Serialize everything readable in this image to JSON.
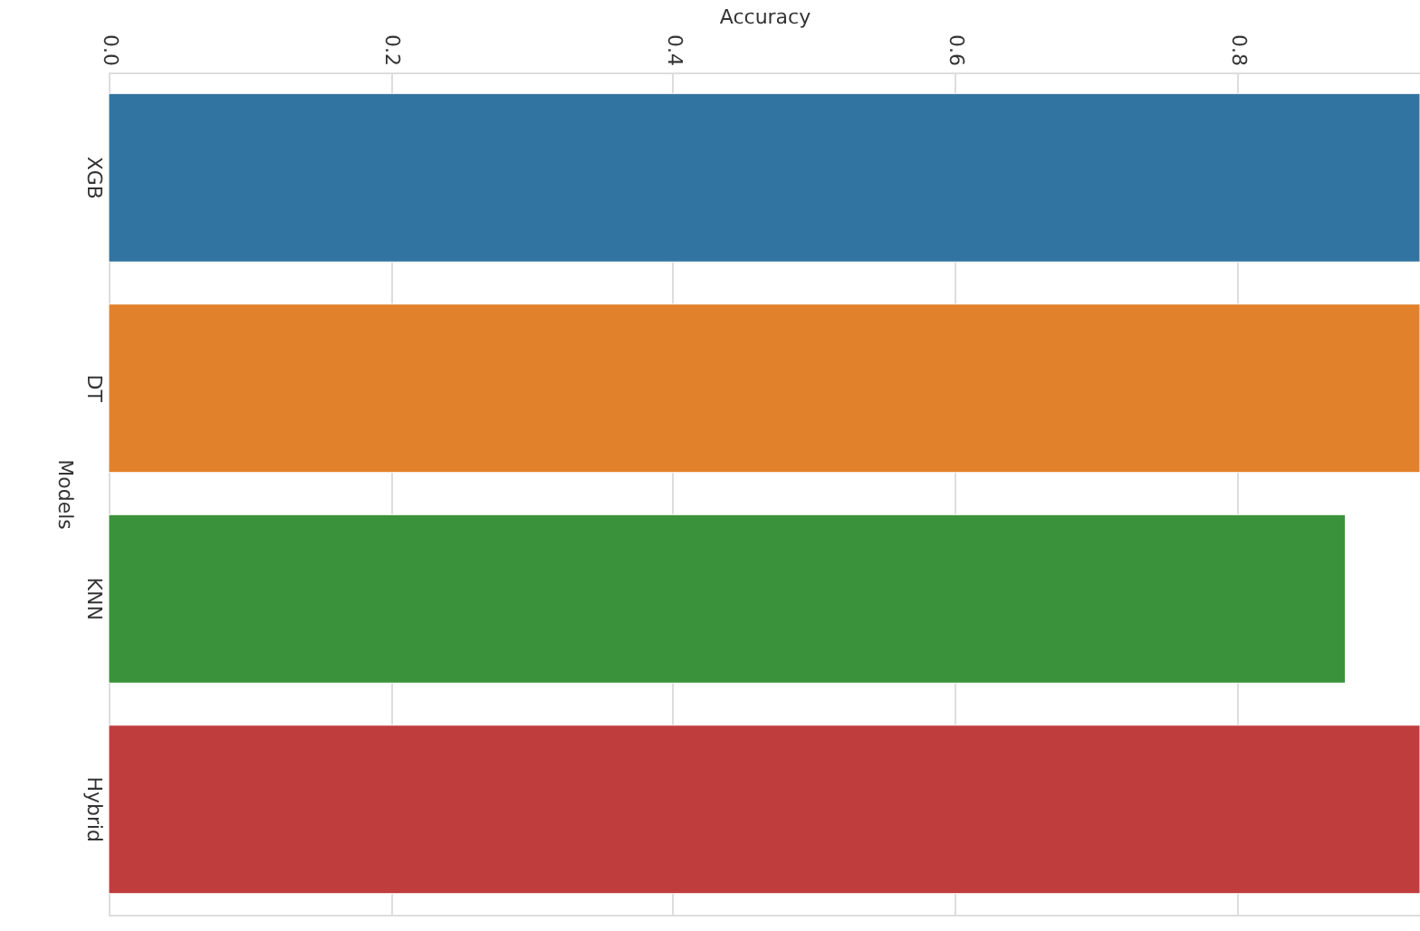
{
  "chart_data": {
    "type": "bar",
    "orientation": "horizontal",
    "xlabel": "Accuracy",
    "ylabel": "Models",
    "categories": [
      "XGB",
      "DT",
      "KNN",
      "Hybrid"
    ],
    "values": [
      0.93,
      0.93,
      0.877,
      0.93
    ],
    "colors": [
      "#3274a1",
      "#e1812c",
      "#3a923a",
      "#c03d3e"
    ],
    "xlim": [
      0,
      0.93
    ],
    "xticks": [
      {
        "value": 0,
        "label": "0.0"
      },
      0.2,
      0.4,
      0.6,
      0.8
    ],
    "grid": "x"
  }
}
